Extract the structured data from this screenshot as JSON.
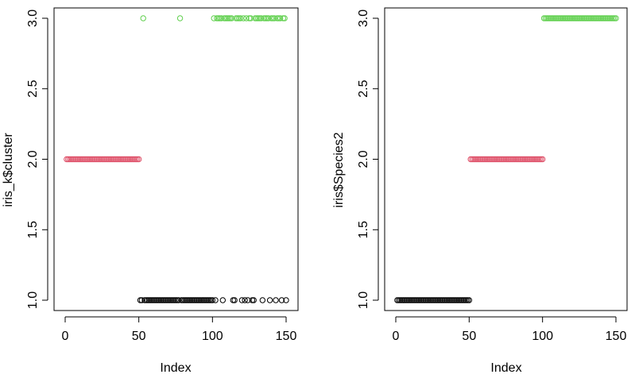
{
  "chart_data": [
    {
      "type": "scatter",
      "xlabel": "Index",
      "ylabel": "iris_k$cluster",
      "xlim": [
        1,
        150
      ],
      "ylim": [
        1,
        3
      ],
      "x_ticks": [
        "0",
        "50",
        "100",
        "150"
      ],
      "y_ticks": [
        "1.0",
        "1.5",
        "2.0",
        "2.5",
        "3.0"
      ],
      "grid": false,
      "color_map": {
        "1": "#000000",
        "2": "#DF536B",
        "3": "#61D04F"
      },
      "points": [
        {
          "x": 1,
          "y": 2
        },
        {
          "x": 2,
          "y": 2
        },
        {
          "x": 3,
          "y": 2
        },
        {
          "x": 4,
          "y": 2
        },
        {
          "x": 5,
          "y": 2
        },
        {
          "x": 6,
          "y": 2
        },
        {
          "x": 7,
          "y": 2
        },
        {
          "x": 8,
          "y": 2
        },
        {
          "x": 9,
          "y": 2
        },
        {
          "x": 10,
          "y": 2
        },
        {
          "x": 11,
          "y": 2
        },
        {
          "x": 12,
          "y": 2
        },
        {
          "x": 13,
          "y": 2
        },
        {
          "x": 14,
          "y": 2
        },
        {
          "x": 15,
          "y": 2
        },
        {
          "x": 16,
          "y": 2
        },
        {
          "x": 17,
          "y": 2
        },
        {
          "x": 18,
          "y": 2
        },
        {
          "x": 19,
          "y": 2
        },
        {
          "x": 20,
          "y": 2
        },
        {
          "x": 21,
          "y": 2
        },
        {
          "x": 22,
          "y": 2
        },
        {
          "x": 23,
          "y": 2
        },
        {
          "x": 24,
          "y": 2
        },
        {
          "x": 25,
          "y": 2
        },
        {
          "x": 26,
          "y": 2
        },
        {
          "x": 27,
          "y": 2
        },
        {
          "x": 28,
          "y": 2
        },
        {
          "x": 29,
          "y": 2
        },
        {
          "x": 30,
          "y": 2
        },
        {
          "x": 31,
          "y": 2
        },
        {
          "x": 32,
          "y": 2
        },
        {
          "x": 33,
          "y": 2
        },
        {
          "x": 34,
          "y": 2
        },
        {
          "x": 35,
          "y": 2
        },
        {
          "x": 36,
          "y": 2
        },
        {
          "x": 37,
          "y": 2
        },
        {
          "x": 38,
          "y": 2
        },
        {
          "x": 39,
          "y": 2
        },
        {
          "x": 40,
          "y": 2
        },
        {
          "x": 41,
          "y": 2
        },
        {
          "x": 42,
          "y": 2
        },
        {
          "x": 43,
          "y": 2
        },
        {
          "x": 44,
          "y": 2
        },
        {
          "x": 45,
          "y": 2
        },
        {
          "x": 46,
          "y": 2
        },
        {
          "x": 47,
          "y": 2
        },
        {
          "x": 48,
          "y": 2
        },
        {
          "x": 49,
          "y": 2
        },
        {
          "x": 50,
          "y": 2
        },
        {
          "x": 51,
          "y": 1
        },
        {
          "x": 52,
          "y": 1
        },
        {
          "x": 53,
          "y": 3
        },
        {
          "x": 54,
          "y": 1
        },
        {
          "x": 55,
          "y": 1
        },
        {
          "x": 56,
          "y": 1
        },
        {
          "x": 57,
          "y": 1
        },
        {
          "x": 58,
          "y": 1
        },
        {
          "x": 59,
          "y": 1
        },
        {
          "x": 60,
          "y": 1
        },
        {
          "x": 61,
          "y": 1
        },
        {
          "x": 62,
          "y": 1
        },
        {
          "x": 63,
          "y": 1
        },
        {
          "x": 64,
          "y": 1
        },
        {
          "x": 65,
          "y": 1
        },
        {
          "x": 66,
          "y": 1
        },
        {
          "x": 67,
          "y": 1
        },
        {
          "x": 68,
          "y": 1
        },
        {
          "x": 69,
          "y": 1
        },
        {
          "x": 70,
          "y": 1
        },
        {
          "x": 71,
          "y": 1
        },
        {
          "x": 72,
          "y": 1
        },
        {
          "x": 73,
          "y": 1
        },
        {
          "x": 74,
          "y": 1
        },
        {
          "x": 75,
          "y": 1
        },
        {
          "x": 76,
          "y": 1
        },
        {
          "x": 77,
          "y": 1
        },
        {
          "x": 78,
          "y": 3
        },
        {
          "x": 79,
          "y": 1
        },
        {
          "x": 80,
          "y": 1
        },
        {
          "x": 81,
          "y": 1
        },
        {
          "x": 82,
          "y": 1
        },
        {
          "x": 83,
          "y": 1
        },
        {
          "x": 84,
          "y": 1
        },
        {
          "x": 85,
          "y": 1
        },
        {
          "x": 86,
          "y": 1
        },
        {
          "x": 87,
          "y": 1
        },
        {
          "x": 88,
          "y": 1
        },
        {
          "x": 89,
          "y": 1
        },
        {
          "x": 90,
          "y": 1
        },
        {
          "x": 91,
          "y": 1
        },
        {
          "x": 92,
          "y": 1
        },
        {
          "x": 93,
          "y": 1
        },
        {
          "x": 94,
          "y": 1
        },
        {
          "x": 95,
          "y": 1
        },
        {
          "x": 96,
          "y": 1
        },
        {
          "x": 97,
          "y": 1
        },
        {
          "x": 98,
          "y": 1
        },
        {
          "x": 99,
          "y": 1
        },
        {
          "x": 100,
          "y": 1
        },
        {
          "x": 101,
          "y": 3
        },
        {
          "x": 102,
          "y": 1
        },
        {
          "x": 103,
          "y": 3
        },
        {
          "x": 104,
          "y": 3
        },
        {
          "x": 105,
          "y": 3
        },
        {
          "x": 106,
          "y": 3
        },
        {
          "x": 107,
          "y": 1
        },
        {
          "x": 108,
          "y": 3
        },
        {
          "x": 109,
          "y": 3
        },
        {
          "x": 110,
          "y": 3
        },
        {
          "x": 111,
          "y": 3
        },
        {
          "x": 112,
          "y": 3
        },
        {
          "x": 113,
          "y": 3
        },
        {
          "x": 114,
          "y": 1
        },
        {
          "x": 115,
          "y": 1
        },
        {
          "x": 116,
          "y": 3
        },
        {
          "x": 117,
          "y": 3
        },
        {
          "x": 118,
          "y": 3
        },
        {
          "x": 119,
          "y": 3
        },
        {
          "x": 120,
          "y": 1
        },
        {
          "x": 121,
          "y": 3
        },
        {
          "x": 122,
          "y": 1
        },
        {
          "x": 123,
          "y": 3
        },
        {
          "x": 124,
          "y": 1
        },
        {
          "x": 125,
          "y": 3
        },
        {
          "x": 126,
          "y": 3
        },
        {
          "x": 127,
          "y": 1
        },
        {
          "x": 128,
          "y": 1
        },
        {
          "x": 129,
          "y": 3
        },
        {
          "x": 130,
          "y": 3
        },
        {
          "x": 131,
          "y": 3
        },
        {
          "x": 132,
          "y": 3
        },
        {
          "x": 133,
          "y": 3
        },
        {
          "x": 134,
          "y": 1
        },
        {
          "x": 135,
          "y": 3
        },
        {
          "x": 136,
          "y": 3
        },
        {
          "x": 137,
          "y": 3
        },
        {
          "x": 138,
          "y": 3
        },
        {
          "x": 139,
          "y": 1
        },
        {
          "x": 140,
          "y": 3
        },
        {
          "x": 141,
          "y": 3
        },
        {
          "x": 142,
          "y": 3
        },
        {
          "x": 143,
          "y": 1
        },
        {
          "x": 144,
          "y": 3
        },
        {
          "x": 145,
          "y": 3
        },
        {
          "x": 146,
          "y": 3
        },
        {
          "x": 147,
          "y": 1
        },
        {
          "x": 148,
          "y": 3
        },
        {
          "x": 149,
          "y": 3
        },
        {
          "x": 150,
          "y": 1
        }
      ]
    },
    {
      "type": "scatter",
      "xlabel": "Index",
      "ylabel": "iris$Species2",
      "xlim": [
        1,
        150
      ],
      "ylim": [
        1,
        3
      ],
      "x_ticks": [
        "0",
        "50",
        "100",
        "150"
      ],
      "y_ticks": [
        "1.0",
        "1.5",
        "2.0",
        "2.5",
        "3.0"
      ],
      "grid": false,
      "color_map": {
        "1": "#000000",
        "2": "#DF536B",
        "3": "#61D04F"
      },
      "points": [
        {
          "x": 1,
          "y": 1
        },
        {
          "x": 2,
          "y": 1
        },
        {
          "x": 3,
          "y": 1
        },
        {
          "x": 4,
          "y": 1
        },
        {
          "x": 5,
          "y": 1
        },
        {
          "x": 6,
          "y": 1
        },
        {
          "x": 7,
          "y": 1
        },
        {
          "x": 8,
          "y": 1
        },
        {
          "x": 9,
          "y": 1
        },
        {
          "x": 10,
          "y": 1
        },
        {
          "x": 11,
          "y": 1
        },
        {
          "x": 12,
          "y": 1
        },
        {
          "x": 13,
          "y": 1
        },
        {
          "x": 14,
          "y": 1
        },
        {
          "x": 15,
          "y": 1
        },
        {
          "x": 16,
          "y": 1
        },
        {
          "x": 17,
          "y": 1
        },
        {
          "x": 18,
          "y": 1
        },
        {
          "x": 19,
          "y": 1
        },
        {
          "x": 20,
          "y": 1
        },
        {
          "x": 21,
          "y": 1
        },
        {
          "x": 22,
          "y": 1
        },
        {
          "x": 23,
          "y": 1
        },
        {
          "x": 24,
          "y": 1
        },
        {
          "x": 25,
          "y": 1
        },
        {
          "x": 26,
          "y": 1
        },
        {
          "x": 27,
          "y": 1
        },
        {
          "x": 28,
          "y": 1
        },
        {
          "x": 29,
          "y": 1
        },
        {
          "x": 30,
          "y": 1
        },
        {
          "x": 31,
          "y": 1
        },
        {
          "x": 32,
          "y": 1
        },
        {
          "x": 33,
          "y": 1
        },
        {
          "x": 34,
          "y": 1
        },
        {
          "x": 35,
          "y": 1
        },
        {
          "x": 36,
          "y": 1
        },
        {
          "x": 37,
          "y": 1
        },
        {
          "x": 38,
          "y": 1
        },
        {
          "x": 39,
          "y": 1
        },
        {
          "x": 40,
          "y": 1
        },
        {
          "x": 41,
          "y": 1
        },
        {
          "x": 42,
          "y": 1
        },
        {
          "x": 43,
          "y": 1
        },
        {
          "x": 44,
          "y": 1
        },
        {
          "x": 45,
          "y": 1
        },
        {
          "x": 46,
          "y": 1
        },
        {
          "x": 47,
          "y": 1
        },
        {
          "x": 48,
          "y": 1
        },
        {
          "x": 49,
          "y": 1
        },
        {
          "x": 50,
          "y": 1
        },
        {
          "x": 51,
          "y": 2
        },
        {
          "x": 52,
          "y": 2
        },
        {
          "x": 53,
          "y": 2
        },
        {
          "x": 54,
          "y": 2
        },
        {
          "x": 55,
          "y": 2
        },
        {
          "x": 56,
          "y": 2
        },
        {
          "x": 57,
          "y": 2
        },
        {
          "x": 58,
          "y": 2
        },
        {
          "x": 59,
          "y": 2
        },
        {
          "x": 60,
          "y": 2
        },
        {
          "x": 61,
          "y": 2
        },
        {
          "x": 62,
          "y": 2
        },
        {
          "x": 63,
          "y": 2
        },
        {
          "x": 64,
          "y": 2
        },
        {
          "x": 65,
          "y": 2
        },
        {
          "x": 66,
          "y": 2
        },
        {
          "x": 67,
          "y": 2
        },
        {
          "x": 68,
          "y": 2
        },
        {
          "x": 69,
          "y": 2
        },
        {
          "x": 70,
          "y": 2
        },
        {
          "x": 71,
          "y": 2
        },
        {
          "x": 72,
          "y": 2
        },
        {
          "x": 73,
          "y": 2
        },
        {
          "x": 74,
          "y": 2
        },
        {
          "x": 75,
          "y": 2
        },
        {
          "x": 76,
          "y": 2
        },
        {
          "x": 77,
          "y": 2
        },
        {
          "x": 78,
          "y": 2
        },
        {
          "x": 79,
          "y": 2
        },
        {
          "x": 80,
          "y": 2
        },
        {
          "x": 81,
          "y": 2
        },
        {
          "x": 82,
          "y": 2
        },
        {
          "x": 83,
          "y": 2
        },
        {
          "x": 84,
          "y": 2
        },
        {
          "x": 85,
          "y": 2
        },
        {
          "x": 86,
          "y": 2
        },
        {
          "x": 87,
          "y": 2
        },
        {
          "x": 88,
          "y": 2
        },
        {
          "x": 89,
          "y": 2
        },
        {
          "x": 90,
          "y": 2
        },
        {
          "x": 91,
          "y": 2
        },
        {
          "x": 92,
          "y": 2
        },
        {
          "x": 93,
          "y": 2
        },
        {
          "x": 94,
          "y": 2
        },
        {
          "x": 95,
          "y": 2
        },
        {
          "x": 96,
          "y": 2
        },
        {
          "x": 97,
          "y": 2
        },
        {
          "x": 98,
          "y": 2
        },
        {
          "x": 99,
          "y": 2
        },
        {
          "x": 100,
          "y": 2
        },
        {
          "x": 101,
          "y": 3
        },
        {
          "x": 102,
          "y": 3
        },
        {
          "x": 103,
          "y": 3
        },
        {
          "x": 104,
          "y": 3
        },
        {
          "x": 105,
          "y": 3
        },
        {
          "x": 106,
          "y": 3
        },
        {
          "x": 107,
          "y": 3
        },
        {
          "x": 108,
          "y": 3
        },
        {
          "x": 109,
          "y": 3
        },
        {
          "x": 110,
          "y": 3
        },
        {
          "x": 111,
          "y": 3
        },
        {
          "x": 112,
          "y": 3
        },
        {
          "x": 113,
          "y": 3
        },
        {
          "x": 114,
          "y": 3
        },
        {
          "x": 115,
          "y": 3
        },
        {
          "x": 116,
          "y": 3
        },
        {
          "x": 117,
          "y": 3
        },
        {
          "x": 118,
          "y": 3
        },
        {
          "x": 119,
          "y": 3
        },
        {
          "x": 120,
          "y": 3
        },
        {
          "x": 121,
          "y": 3
        },
        {
          "x": 122,
          "y": 3
        },
        {
          "x": 123,
          "y": 3
        },
        {
          "x": 124,
          "y": 3
        },
        {
          "x": 125,
          "y": 3
        },
        {
          "x": 126,
          "y": 3
        },
        {
          "x": 127,
          "y": 3
        },
        {
          "x": 128,
          "y": 3
        },
        {
          "x": 129,
          "y": 3
        },
        {
          "x": 130,
          "y": 3
        },
        {
          "x": 131,
          "y": 3
        },
        {
          "x": 132,
          "y": 3
        },
        {
          "x": 133,
          "y": 3
        },
        {
          "x": 134,
          "y": 3
        },
        {
          "x": 135,
          "y": 3
        },
        {
          "x": 136,
          "y": 3
        },
        {
          "x": 137,
          "y": 3
        },
        {
          "x": 138,
          "y": 3
        },
        {
          "x": 139,
          "y": 3
        },
        {
          "x": 140,
          "y": 3
        },
        {
          "x": 141,
          "y": 3
        },
        {
          "x": 142,
          "y": 3
        },
        {
          "x": 143,
          "y": 3
        },
        {
          "x": 144,
          "y": 3
        },
        {
          "x": 145,
          "y": 3
        },
        {
          "x": 146,
          "y": 3
        },
        {
          "x": 147,
          "y": 3
        },
        {
          "x": 148,
          "y": 3
        },
        {
          "x": 149,
          "y": 3
        },
        {
          "x": 150,
          "y": 3
        }
      ]
    }
  ]
}
